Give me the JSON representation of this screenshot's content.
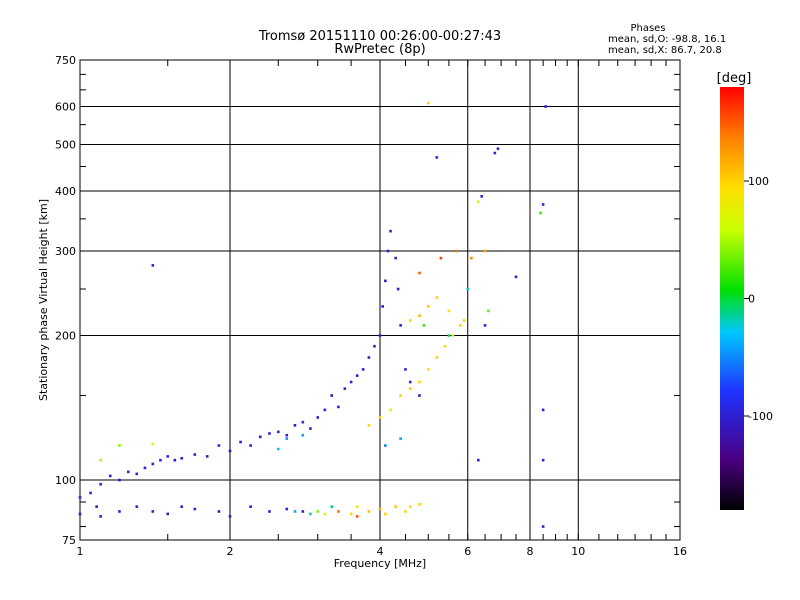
{
  "header": {
    "title": "Tromsø 20151110 00:26:00-00:27:43",
    "subtitle": "RwPretec (8p)"
  },
  "stats": {
    "heading": "Phases",
    "line_o": "mean, sd,O: -98.8, 16.1",
    "line_x": "mean, sd,X:  86.7, 20.8"
  },
  "colorbar": {
    "title": "[deg]",
    "tick_labels": [
      "100",
      "0",
      "-100"
    ],
    "ticks": [
      100,
      0,
      -100
    ],
    "range": [
      -180,
      180
    ]
  },
  "chart_data": {
    "type": "scatter",
    "xlabel": "Frequency [MHz]",
    "ylabel": "Stationary phase Virtual Height [km]",
    "x_scale": "log",
    "y_scale": "log",
    "xlim": [
      1,
      16
    ],
    "ylim": [
      75,
      750
    ],
    "x_ticks": [
      1,
      2,
      4,
      6,
      8,
      10,
      16
    ],
    "x_tick_labels": [
      "1",
      "2",
      "4",
      "6",
      "8",
      "10",
      "16"
    ],
    "y_ticks": [
      75,
      100,
      200,
      300,
      400,
      500,
      600,
      750
    ],
    "y_tick_labels": [
      "75",
      "100",
      "200",
      "300",
      "400",
      "500",
      "600",
      "750"
    ],
    "grid": true,
    "colormap": "rainbow (black-purple-blue-cyan-green-yellow-orange-red)",
    "series": [
      {
        "points": [
          [
            1.0,
            92,
            -100
          ],
          [
            1.05,
            94,
            -95
          ],
          [
            1.08,
            88,
            -105
          ],
          [
            1.1,
            98,
            -90
          ],
          [
            1.15,
            102,
            -100
          ],
          [
            1.2,
            100,
            -110
          ],
          [
            1.25,
            104,
            -95
          ],
          [
            1.3,
            103,
            -100
          ],
          [
            1.35,
            106,
            -98
          ],
          [
            1.4,
            108,
            -105
          ],
          [
            1.45,
            110,
            -100
          ],
          [
            1.5,
            112,
            -95
          ],
          [
            1.55,
            110,
            -110
          ],
          [
            1.6,
            111,
            -100
          ],
          [
            1.7,
            113,
            -105
          ],
          [
            1.8,
            112,
            -98
          ],
          [
            1.9,
            118,
            -100
          ],
          [
            2.0,
            115,
            -110
          ],
          [
            2.1,
            120,
            -100
          ],
          [
            2.2,
            118,
            -95
          ],
          [
            2.3,
            123,
            -105
          ],
          [
            2.4,
            125,
            -100
          ],
          [
            2.5,
            126,
            -90
          ],
          [
            2.6,
            124,
            -110
          ],
          [
            2.7,
            130,
            -100
          ],
          [
            2.8,
            132,
            -95
          ],
          [
            2.9,
            128,
            -105
          ],
          [
            3.0,
            135,
            -100
          ],
          [
            3.1,
            140,
            -95
          ],
          [
            3.2,
            150,
            -110
          ],
          [
            3.3,
            142,
            -100
          ],
          [
            3.4,
            155,
            -95
          ],
          [
            3.5,
            160,
            -100
          ],
          [
            3.6,
            165,
            -105
          ],
          [
            3.7,
            170,
            -100
          ],
          [
            3.8,
            180,
            -98
          ],
          [
            3.9,
            190,
            -100
          ],
          [
            4.0,
            200,
            -95
          ],
          [
            4.05,
            230,
            -100
          ],
          [
            4.1,
            260,
            -105
          ],
          [
            4.15,
            300,
            -100
          ],
          [
            4.2,
            330,
            -98
          ],
          [
            4.3,
            290,
            -100
          ],
          [
            4.35,
            250,
            -105
          ],
          [
            4.4,
            210,
            -100
          ],
          [
            4.5,
            170,
            -95
          ],
          [
            4.6,
            160,
            -100
          ],
          [
            4.8,
            150,
            -105
          ],
          [
            1.0,
            85,
            -100
          ],
          [
            1.1,
            84,
            -105
          ],
          [
            1.2,
            86,
            -100
          ],
          [
            1.3,
            88,
            -95
          ],
          [
            1.4,
            86,
            -100
          ],
          [
            1.5,
            85,
            -110
          ],
          [
            1.6,
            88,
            -100
          ],
          [
            1.7,
            87,
            -95
          ],
          [
            1.9,
            86,
            -100
          ],
          [
            2.0,
            84,
            -105
          ],
          [
            2.2,
            88,
            -100
          ],
          [
            2.4,
            86,
            -98
          ],
          [
            2.6,
            87,
            -100
          ],
          [
            2.8,
            86,
            -105
          ],
          [
            1.4,
            280,
            -100
          ],
          [
            5.2,
            470,
            -100
          ],
          [
            6.4,
            390,
            -100
          ],
          [
            6.9,
            490,
            -100
          ],
          [
            6.8,
            480,
            -100
          ],
          [
            6.5,
            210,
            -100
          ],
          [
            6.3,
            110,
            -100
          ],
          [
            7.5,
            265,
            -100
          ],
          [
            8.5,
            375,
            -95
          ],
          [
            8.6,
            600,
            -100
          ],
          [
            8.5,
            140,
            -100
          ],
          [
            8.5,
            110,
            -100
          ],
          [
            8.5,
            80,
            -100
          ]
        ],
        "polarity": "O"
      },
      {
        "points": [
          [
            3.0,
            86,
            40
          ],
          [
            3.1,
            85,
            60
          ],
          [
            3.3,
            86,
            70
          ],
          [
            3.5,
            85,
            100
          ],
          [
            3.6,
            88,
            95
          ],
          [
            3.8,
            86,
            110
          ],
          [
            4.0,
            87,
            120
          ],
          [
            4.1,
            85,
            100
          ],
          [
            4.3,
            88,
            105
          ],
          [
            4.5,
            86,
            100
          ],
          [
            4.6,
            88,
            95
          ],
          [
            4.8,
            89,
            100
          ],
          [
            3.8,
            130,
            100
          ],
          [
            4.0,
            135,
            100
          ],
          [
            4.2,
            140,
            95
          ],
          [
            4.4,
            150,
            100
          ],
          [
            4.6,
            155,
            105
          ],
          [
            4.8,
            160,
            100
          ],
          [
            5.0,
            170,
            95
          ],
          [
            5.2,
            180,
            100
          ],
          [
            5.4,
            190,
            100
          ],
          [
            5.6,
            200,
            90
          ],
          [
            5.8,
            210,
            100
          ],
          [
            5.0,
            230,
            105
          ],
          [
            5.2,
            240,
            100
          ],
          [
            4.8,
            220,
            110
          ],
          [
            4.6,
            215,
            100
          ],
          [
            5.5,
            225,
            95
          ],
          [
            5.9,
            215,
            100
          ],
          [
            6.1,
            290,
            130
          ],
          [
            5.7,
            300,
            140
          ],
          [
            6.3,
            380,
            80
          ],
          [
            6.5,
            300,
            120
          ],
          [
            5.0,
            610,
            100
          ],
          [
            8.4,
            360,
            20
          ],
          [
            4.8,
            270,
            150
          ],
          [
            5.3,
            290,
            160
          ],
          [
            3.3,
            86,
            140
          ],
          [
            3.6,
            84,
            150
          ]
        ],
        "polarity": "X"
      },
      {
        "points": [
          [
            2.7,
            86,
            -40
          ],
          [
            2.9,
            85,
            -20
          ],
          [
            3.2,
            88,
            -10
          ],
          [
            2.6,
            122,
            -50
          ],
          [
            2.8,
            124,
            -45
          ],
          [
            2.5,
            116,
            -30
          ],
          [
            1.2,
            118,
            40
          ],
          [
            1.4,
            119,
            60
          ],
          [
            1.1,
            110,
            50
          ],
          [
            4.1,
            118,
            -50
          ],
          [
            4.4,
            122,
            -40
          ],
          [
            6.0,
            250,
            -20
          ],
          [
            6.6,
            225,
            30
          ],
          [
            5.5,
            200,
            -10
          ],
          [
            4.9,
            210,
            20
          ]
        ],
        "polarity": "mixed"
      }
    ]
  }
}
